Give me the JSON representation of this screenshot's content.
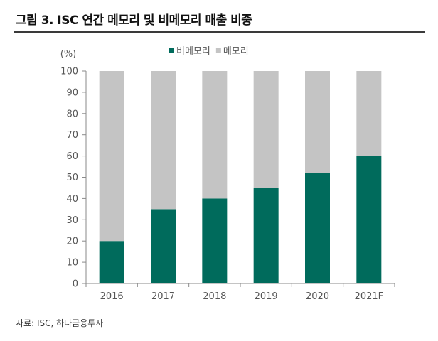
{
  "figure": {
    "title": "그림 3. ISC 연간 메모리 및 비메모리 매출 비중",
    "source": "자료: ISC, 하나금융투자"
  },
  "chart_data": {
    "type": "bar",
    "stacked": true,
    "categories": [
      "2016",
      "2017",
      "2018",
      "2019",
      "2020",
      "2021F"
    ],
    "series": [
      {
        "name": "비메모리",
        "color": "#006b5c",
        "values": [
          20,
          35,
          40,
          45,
          52,
          60
        ]
      },
      {
        "name": "메모리",
        "color": "#c4c4c4",
        "values": [
          80,
          65,
          60,
          55,
          48,
          40
        ]
      }
    ],
    "ylabel": "(%)",
    "ylim": [
      0,
      100
    ],
    "yticks": [
      0,
      10,
      20,
      30,
      40,
      50,
      60,
      70,
      80,
      90,
      100
    ],
    "grid": false,
    "legend": "top-center"
  }
}
